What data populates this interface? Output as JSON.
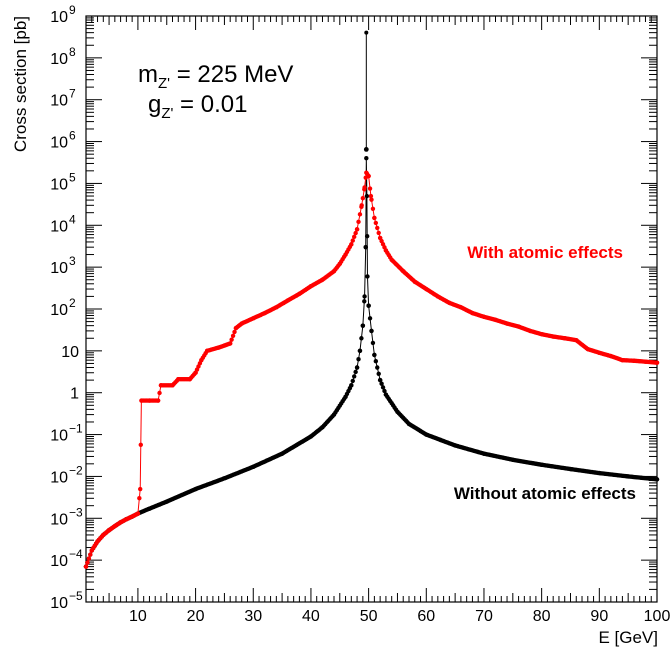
{
  "chart_data": {
    "type": "scatter",
    "xlabel": "E [GeV]",
    "ylabel": "Cross section [pb]",
    "xlim": [
      1,
      100
    ],
    "ylim_log10": [
      -5,
      9
    ],
    "yscale": "log",
    "grid": false,
    "x_ticks": [
      10,
      20,
      30,
      40,
      50,
      60,
      70,
      80,
      90,
      100
    ],
    "x_tick_labels": [
      "10",
      "20",
      "30",
      "40",
      "50",
      "60",
      "70",
      "80",
      "90",
      "100"
    ],
    "y_tick_labels": [
      {
        "exp": -5,
        "label": "10",
        "sup": "−5"
      },
      {
        "exp": -4,
        "label": "10",
        "sup": "−4"
      },
      {
        "exp": -3,
        "label": "10",
        "sup": "−3"
      },
      {
        "exp": -2,
        "label": "10",
        "sup": "−2"
      },
      {
        "exp": -1,
        "label": "10",
        "sup": "−1"
      },
      {
        "exp": 0,
        "label": "1",
        "sup": ""
      },
      {
        "exp": 1,
        "label": "10",
        "sup": ""
      },
      {
        "exp": 2,
        "label": "10",
        "sup": "2"
      },
      {
        "exp": 3,
        "label": "10",
        "sup": "3"
      },
      {
        "exp": 4,
        "label": "10",
        "sup": "4"
      },
      {
        "exp": 5,
        "label": "10",
        "sup": "5"
      },
      {
        "exp": 6,
        "label": "10",
        "sup": "6"
      },
      {
        "exp": 7,
        "label": "10",
        "sup": "7"
      },
      {
        "exp": 8,
        "label": "10",
        "sup": "8"
      },
      {
        "exp": 9,
        "label": "10",
        "sup": "9"
      }
    ],
    "annotation": {
      "line1_prefix": "m",
      "line1_sub": "Z'",
      "line1_suffix": " = 225 MeV",
      "line2_prefix": "g",
      "line2_sub": "Z'",
      "line2_suffix": " = 0.01"
    },
    "series": [
      {
        "name": "With atomic effects",
        "color": "#ff0000",
        "label_position": "right, above curve",
        "points": [
          [
            1,
            7e-05
          ],
          [
            2,
            0.00017
          ],
          [
            3,
            0.00028
          ],
          [
            4,
            0.0004
          ],
          [
            5,
            0.00052
          ],
          [
            6,
            0.00065
          ],
          [
            7,
            0.0008
          ],
          [
            8,
            0.00095
          ],
          [
            9,
            0.0011
          ],
          [
            10,
            0.0013
          ],
          [
            10.4,
            0.005
          ],
          [
            10.6,
            0.65
          ],
          [
            12,
            0.65
          ],
          [
            13.5,
            0.65
          ],
          [
            14,
            1.5
          ],
          [
            16,
            1.5
          ],
          [
            17,
            2.1
          ],
          [
            19,
            2.1
          ],
          [
            20,
            3
          ],
          [
            21,
            6
          ],
          [
            22,
            10
          ],
          [
            24,
            12
          ],
          [
            26,
            15
          ],
          [
            27,
            35
          ],
          [
            28,
            45
          ],
          [
            30,
            60
          ],
          [
            32,
            80
          ],
          [
            34,
            110
          ],
          [
            36,
            160
          ],
          [
            38,
            230
          ],
          [
            40,
            350
          ],
          [
            42,
            500
          ],
          [
            44,
            800
          ],
          [
            45,
            1200
          ],
          [
            46,
            2000
          ],
          [
            47,
            3500
          ],
          [
            48,
            8000
          ],
          [
            48.8,
            30000.0
          ],
          [
            49.3,
            80000.0
          ],
          [
            49.6,
            180000.0
          ],
          [
            50,
            150000.0
          ],
          [
            50.4,
            50000.0
          ],
          [
            51,
            15000.0
          ],
          [
            52,
            5000
          ],
          [
            53,
            2500
          ],
          [
            54,
            1500
          ],
          [
            56,
            800
          ],
          [
            58,
            450
          ],
          [
            60,
            300
          ],
          [
            62,
            200
          ],
          [
            64,
            140
          ],
          [
            66,
            110
          ],
          [
            68,
            80
          ],
          [
            70,
            65
          ],
          [
            72,
            55
          ],
          [
            74,
            45
          ],
          [
            76,
            38
          ],
          [
            78,
            30
          ],
          [
            80,
            25
          ],
          [
            82,
            22
          ],
          [
            84,
            20
          ],
          [
            86,
            18
          ],
          [
            88,
            11
          ],
          [
            90,
            9
          ],
          [
            92,
            7.5
          ],
          [
            94,
            6
          ],
          [
            96,
            5.8
          ],
          [
            98,
            5.5
          ],
          [
            100,
            5.2
          ]
        ]
      },
      {
        "name": "Without atomic effects",
        "color": "#000000",
        "label_position": "lower right",
        "points": [
          [
            1,
            7e-05
          ],
          [
            2,
            0.00017
          ],
          [
            3,
            0.00028
          ],
          [
            4,
            0.0004
          ],
          [
            5,
            0.00052
          ],
          [
            6,
            0.00065
          ],
          [
            7,
            0.0008
          ],
          [
            8,
            0.00095
          ],
          [
            9,
            0.0011
          ],
          [
            10,
            0.0013
          ],
          [
            12,
            0.0017
          ],
          [
            15,
            0.0025
          ],
          [
            20,
            0.005
          ],
          [
            25,
            0.009
          ],
          [
            30,
            0.017
          ],
          [
            35,
            0.035
          ],
          [
            40,
            0.09
          ],
          [
            42,
            0.15
          ],
          [
            44,
            0.3
          ],
          [
            46,
            0.8
          ],
          [
            47,
            1.5
          ],
          [
            48,
            4
          ],
          [
            48.5,
            10
          ],
          [
            49,
            40
          ],
          [
            49.3,
            200
          ],
          [
            49.5,
            3000
          ],
          [
            49.6,
            400000.0
          ],
          [
            49.7,
            50000.0
          ],
          [
            49.8,
            600
          ],
          [
            50,
            120
          ],
          [
            50.5,
            30
          ],
          [
            51,
            8
          ],
          [
            52,
            2
          ],
          [
            53,
            0.9
          ],
          [
            55,
            0.35
          ],
          [
            57,
            0.18
          ],
          [
            60,
            0.1
          ],
          [
            65,
            0.055
          ],
          [
            70,
            0.035
          ],
          [
            75,
            0.025
          ],
          [
            80,
            0.019
          ],
          [
            85,
            0.015
          ],
          [
            90,
            0.012
          ],
          [
            95,
            0.01
          ],
          [
            100,
            0.0085
          ]
        ],
        "spike_top": [
          49.6,
          400000000.0
        ],
        "spike_mid": [
          49.6,
          650000.0
        ]
      }
    ]
  }
}
